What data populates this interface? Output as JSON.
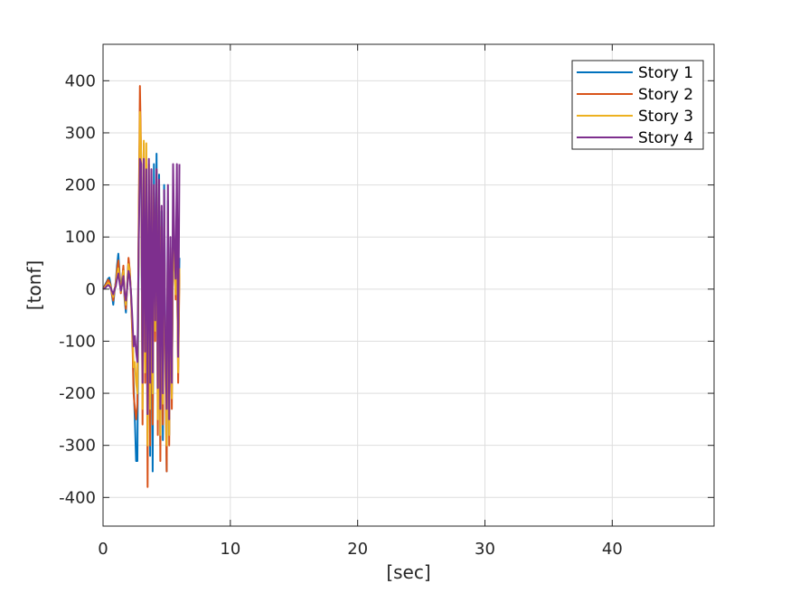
{
  "chart_data": {
    "type": "line",
    "title": "",
    "xlabel": "[sec]",
    "ylabel": "[tonf]",
    "xlim": [
      0,
      48
    ],
    "ylim": [
      -455,
      470
    ],
    "xticks": [
      0,
      10,
      20,
      30,
      40
    ],
    "yticks": [
      -400,
      -300,
      -200,
      -100,
      0,
      100,
      200,
      300,
      400
    ],
    "grid": true,
    "legend_position": "top-right",
    "series": [
      {
        "name": "Story 1",
        "color": "#0072BD",
        "x": [
          0,
          0.2,
          0.4,
          0.5,
          0.6,
          0.7,
          0.8,
          0.9,
          1.0,
          1.1,
          1.2,
          1.3,
          1.4,
          1.5,
          1.6,
          1.7,
          1.8,
          1.9,
          2.0,
          2.1,
          2.2,
          2.3,
          2.4,
          2.5,
          2.6,
          2.7,
          2.8,
          2.9,
          3.0,
          3.1,
          3.2,
          3.3,
          3.4,
          3.5,
          3.6,
          3.7,
          3.8,
          3.9,
          4.0,
          4.1,
          4.2,
          4.3,
          4.4,
          4.5,
          4.6,
          4.7,
          4.8,
          4.9,
          5.0,
          5.1,
          5.2,
          5.3,
          5.4,
          5.5,
          5.6,
          5.7,
          5.8,
          5.9,
          6.0
        ],
        "y": [
          0,
          10,
          20,
          22,
          8,
          -12,
          -30,
          -5,
          15,
          45,
          68,
          30,
          -5,
          20,
          40,
          -20,
          -45,
          10,
          55,
          30,
          -10,
          -80,
          -180,
          -250,
          -330,
          -330,
          90,
          330,
          180,
          -200,
          250,
          -150,
          130,
          -280,
          210,
          -320,
          180,
          -350,
          240,
          -80,
          260,
          -200,
          220,
          -300,
          150,
          -290,
          200,
          -120,
          -350,
          170,
          -280,
          60,
          -200,
          100,
          60,
          0,
          60,
          -150,
          60
        ]
      },
      {
        "name": "Story 2",
        "color": "#D95319",
        "x": [
          0,
          0.2,
          0.4,
          0.5,
          0.6,
          0.7,
          0.8,
          0.9,
          1.0,
          1.1,
          1.2,
          1.3,
          1.4,
          1.5,
          1.6,
          1.7,
          1.8,
          1.9,
          2.0,
          2.1,
          2.2,
          2.3,
          2.4,
          2.5,
          2.6,
          2.7,
          2.8,
          2.9,
          3.0,
          3.1,
          3.2,
          3.3,
          3.4,
          3.5,
          3.6,
          3.7,
          3.8,
          3.9,
          4.0,
          4.1,
          4.2,
          4.3,
          4.4,
          4.5,
          4.6,
          4.7,
          4.8,
          4.9,
          5.0,
          5.1,
          5.2,
          5.3,
          5.4,
          5.5,
          5.6,
          5.7,
          5.8,
          5.9,
          6.0
        ],
        "y": [
          0,
          8,
          18,
          15,
          5,
          -10,
          -22,
          -2,
          12,
          38,
          55,
          25,
          -8,
          15,
          45,
          -15,
          -38,
          8,
          60,
          35,
          -15,
          -90,
          -200,
          -230,
          -250,
          -220,
          120,
          390,
          240,
          -260,
          280,
          -180,
          160,
          -380,
          200,
          -300,
          230,
          -260,
          200,
          -100,
          230,
          -280,
          200,
          -330,
          120,
          -260,
          160,
          -150,
          -350,
          150,
          -300,
          80,
          -230,
          130,
          70,
          -20,
          80,
          -180,
          30
        ]
      },
      {
        "name": "Story 3",
        "color": "#EDB120",
        "x": [
          0,
          0.2,
          0.4,
          0.5,
          0.6,
          0.7,
          0.8,
          0.9,
          1.0,
          1.1,
          1.2,
          1.3,
          1.4,
          1.5,
          1.6,
          1.7,
          1.8,
          1.9,
          2.0,
          2.1,
          2.2,
          2.3,
          2.4,
          2.5,
          2.6,
          2.7,
          2.8,
          2.9,
          3.0,
          3.1,
          3.2,
          3.3,
          3.4,
          3.5,
          3.6,
          3.7,
          3.8,
          3.9,
          4.0,
          4.1,
          4.2,
          4.3,
          4.4,
          4.5,
          4.6,
          4.7,
          4.8,
          4.9,
          5.0,
          5.1,
          5.2,
          5.3,
          5.4,
          5.5,
          5.6,
          5.7,
          5.8,
          5.9,
          6.0
        ],
        "y": [
          0,
          5,
          12,
          10,
          3,
          -6,
          -15,
          0,
          8,
          28,
          40,
          18,
          -5,
          10,
          35,
          -10,
          -30,
          5,
          48,
          30,
          -10,
          -70,
          -150,
          -140,
          -180,
          -200,
          100,
          340,
          250,
          -230,
          285,
          -160,
          280,
          -300,
          240,
          -230,
          200,
          -200,
          180,
          -80,
          200,
          -250,
          180,
          -280,
          100,
          -220,
          130,
          -130,
          -300,
          130,
          -280,
          70,
          -210,
          120,
          60,
          -10,
          70,
          -160,
          40
        ]
      },
      {
        "name": "Story 4",
        "color": "#7E2F8E",
        "x": [
          0,
          0.2,
          0.4,
          0.5,
          0.6,
          0.7,
          0.8,
          0.9,
          1.0,
          1.1,
          1.2,
          1.3,
          1.4,
          1.5,
          1.6,
          1.7,
          1.8,
          1.9,
          2.0,
          2.1,
          2.2,
          2.3,
          2.4,
          2.5,
          2.6,
          2.7,
          2.8,
          2.9,
          3.0,
          3.1,
          3.2,
          3.3,
          3.4,
          3.5,
          3.6,
          3.7,
          3.8,
          3.9,
          4.0,
          4.1,
          4.2,
          4.3,
          4.4,
          4.5,
          4.6,
          4.7,
          4.8,
          4.9,
          5.0,
          5.1,
          5.2,
          5.3,
          5.4,
          5.5,
          5.6,
          5.7,
          5.8,
          5.9,
          6.0
        ],
        "y": [
          0,
          3,
          8,
          6,
          2,
          -4,
          -10,
          0,
          5,
          20,
          30,
          12,
          -3,
          8,
          25,
          -8,
          -22,
          3,
          35,
          22,
          -8,
          -55,
          -110,
          -90,
          -120,
          -140,
          80,
          250,
          240,
          -180,
          250,
          -120,
          230,
          -240,
          250,
          -180,
          230,
          -160,
          200,
          -60,
          230,
          -190,
          210,
          -230,
          160,
          -200,
          190,
          -100,
          -230,
          200,
          -250,
          100,
          -180,
          240,
          80,
          20,
          240,
          -130,
          240
        ]
      }
    ]
  }
}
